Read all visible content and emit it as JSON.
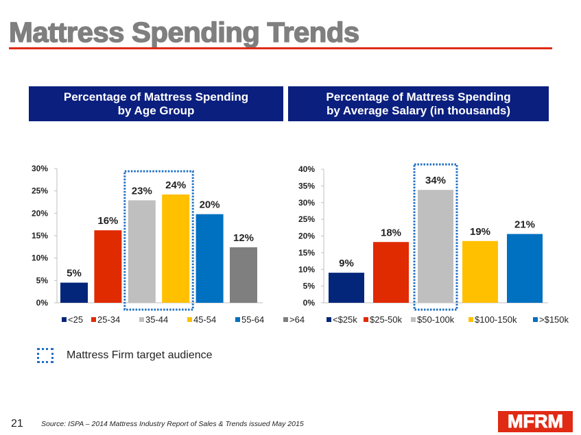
{
  "slide": {
    "title": "Mattress Spending Trends",
    "page_number": "21",
    "source": "Source: ISPA – 2014 Mattress Industry Report of Sales & Trends issued May 2015",
    "logo_text": "MFRM",
    "target_legend_label": "Mattress Firm target audience",
    "colors": {
      "title": "#7f7f7f",
      "rule": "#e02a14",
      "header_bg": "#0b1f7e",
      "target_outline": "#1f6fc4",
      "logo_bg": "#e02a14"
    }
  },
  "chart_data": [
    {
      "type": "bar",
      "header_line1": "Percentage of Mattress Spending",
      "header_line2": "by Age Group",
      "title": "Percentage of Mattress Spending by Age Group",
      "categories": [
        "<25",
        "25-34",
        "35-44",
        "45-54",
        "55-64",
        ">64"
      ],
      "values": [
        4.5,
        16.2,
        22.9,
        24.2,
        19.8,
        12.4
      ],
      "data_labels": [
        "5%",
        "16%",
        "23%",
        "24%",
        "20%",
        "12%"
      ],
      "colors": [
        "#04267a",
        "#e02a00",
        "#bfbfbf",
        "#ffc000",
        "#0070c0",
        "#7f7f7f"
      ],
      "ylim": [
        0,
        30
      ],
      "yticks": [
        0,
        5,
        10,
        15,
        20,
        25,
        30
      ],
      "ytick_labels": [
        "0%",
        "5%",
        "10%",
        "15%",
        "20%",
        "25%",
        "30%"
      ],
      "xlabel": "",
      "ylabel": "",
      "grid": false,
      "legend": "bottom",
      "highlighted_categories": [
        "35-44",
        "45-54"
      ]
    },
    {
      "type": "bar",
      "header_line1": "Percentage of Mattress Spending",
      "header_line2": "by Average Salary (in thousands)",
      "title": "Percentage of Mattress Spending by Average Salary (in thousands)",
      "categories": [
        "<$25k",
        "$25-50k",
        "$50-100k",
        "$100-150k",
        ">$150k"
      ],
      "values": [
        9.0,
        18.2,
        33.8,
        18.5,
        20.6
      ],
      "data_labels": [
        "9%",
        "18%",
        "34%",
        "19%",
        "21%"
      ],
      "colors": [
        "#04267a",
        "#e02a00",
        "#bfbfbf",
        "#ffc000",
        "#0070c0"
      ],
      "ylim": [
        0,
        40
      ],
      "yticks": [
        0,
        5,
        10,
        15,
        20,
        25,
        30,
        35,
        40
      ],
      "ytick_labels": [
        "0%",
        "5%",
        "10%",
        "15%",
        "20%",
        "25%",
        "30%",
        "35%",
        "40%"
      ],
      "xlabel": "",
      "ylabel": "",
      "grid": false,
      "legend": "bottom",
      "highlighted_categories": [
        "$50-100k"
      ]
    }
  ]
}
